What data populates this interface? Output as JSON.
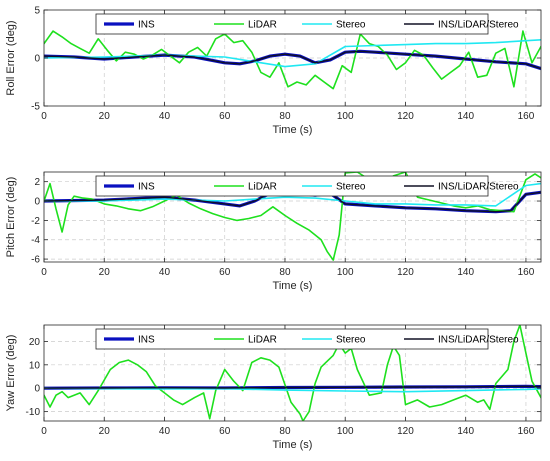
{
  "chart_data": [
    {
      "type": "line",
      "xlabel": "Time (s)",
      "ylabel": "Roll Error (deg)",
      "xlim": [
        0,
        165
      ],
      "ylim": [
        -5,
        5
      ],
      "xticks": [
        0,
        20,
        40,
        60,
        80,
        100,
        120,
        140,
        160
      ],
      "yticks": [
        -5,
        0,
        5
      ],
      "grid": true,
      "legend": "top, horizontal",
      "series": [
        {
          "name": "INS",
          "color": "#0a10c0",
          "width": 3.2,
          "x": [
            0,
            10,
            20,
            30,
            40,
            50,
            60,
            65,
            70,
            75,
            80,
            85,
            90,
            95,
            100,
            105,
            110,
            120,
            130,
            140,
            150,
            160,
            165
          ],
          "y": [
            0.2,
            0.1,
            -0.1,
            0.1,
            0.3,
            0.1,
            -0.5,
            -0.6,
            -0.3,
            0.2,
            0.4,
            0.2,
            -0.5,
            -0.2,
            0.6,
            0.7,
            0.6,
            0.4,
            0.2,
            -0.1,
            -0.4,
            -0.6,
            -1.1
          ]
        },
        {
          "name": "LiDAR",
          "color": "#1ee01e",
          "width": 1.6,
          "x": [
            0,
            3,
            6,
            9,
            12,
            15,
            18,
            21,
            24,
            27,
            30,
            33,
            36,
            39,
            42,
            45,
            48,
            51,
            54,
            57,
            60,
            63,
            66,
            69,
            72,
            75,
            78,
            81,
            84,
            87,
            90,
            93,
            96,
            99,
            102,
            105,
            108,
            111,
            114,
            117,
            120,
            123,
            126,
            129,
            132,
            135,
            138,
            141,
            144,
            147,
            150,
            153,
            156,
            159,
            162,
            165
          ],
          "y": [
            1.5,
            2.8,
            2.2,
            1.5,
            1.0,
            0.5,
            2.0,
            0.8,
            -0.3,
            0.6,
            0.4,
            -0.1,
            0.3,
            0.9,
            0.2,
            -0.5,
            0.6,
            1.1,
            0.2,
            2.0,
            2.5,
            1.6,
            1.8,
            0.6,
            -1.5,
            -2.0,
            -0.5,
            -3.0,
            -2.5,
            -2.8,
            -1.8,
            -2.5,
            -3.2,
            -0.8,
            -1.5,
            2.5,
            1.5,
            1.2,
            0.3,
            -1.2,
            -0.5,
            0.8,
            0.3,
            -1.0,
            -2.2,
            -1.5,
            -0.8,
            0.6,
            -2.0,
            -1.8,
            0.5,
            1.0,
            -3.0,
            2.8,
            -0.5,
            1.2
          ]
        },
        {
          "name": "Stereo",
          "color": "#20e8f2",
          "width": 1.6,
          "x": [
            0,
            20,
            40,
            60,
            70,
            80,
            90,
            100,
            110,
            120,
            130,
            140,
            150,
            160,
            165
          ],
          "y": [
            0.0,
            0.1,
            0.3,
            0.1,
            -0.4,
            -0.9,
            -0.6,
            1.2,
            1.3,
            1.4,
            1.5,
            1.5,
            1.6,
            1.8,
            1.9
          ]
        },
        {
          "name": "INS/LiDAR/Stereo",
          "color": "#101025",
          "width": 1.4,
          "x": [
            0,
            10,
            20,
            30,
            40,
            50,
            60,
            65,
            70,
            75,
            80,
            85,
            90,
            95,
            100,
            105,
            110,
            120,
            130,
            140,
            150,
            160,
            165
          ],
          "y": [
            0.2,
            0.1,
            -0.1,
            0.1,
            0.3,
            0.1,
            -0.5,
            -0.6,
            -0.3,
            0.2,
            0.4,
            0.2,
            -0.5,
            -0.2,
            0.6,
            0.7,
            0.6,
            0.4,
            0.2,
            -0.1,
            -0.4,
            -0.6,
            -1.1
          ]
        }
      ]
    },
    {
      "type": "line",
      "xlabel": "Time (s)",
      "ylabel": "Pitch Error (deg)",
      "xlim": [
        0,
        165
      ],
      "ylim": [
        -6.3,
        3
      ],
      "xticks": [
        0,
        20,
        40,
        60,
        80,
        100,
        120,
        140,
        160
      ],
      "yticks": [
        -6,
        -4,
        -2,
        0,
        2
      ],
      "grid": true,
      "legend": "top, horizontal",
      "series": [
        {
          "name": "INS",
          "color": "#0a10c0",
          "width": 3.2,
          "x": [
            0,
            20,
            40,
            50,
            60,
            65,
            70,
            75,
            80,
            85,
            90,
            95,
            100,
            110,
            120,
            130,
            140,
            150,
            155,
            160,
            165
          ],
          "y": [
            0.0,
            0.1,
            0.4,
            0.1,
            -0.3,
            -0.5,
            0.0,
            0.8,
            0.8,
            0.8,
            0.6,
            0.8,
            -0.3,
            -0.5,
            -0.7,
            -0.8,
            -1.0,
            -1.1,
            -1.0,
            0.7,
            0.9
          ]
        },
        {
          "name": "LiDAR",
          "color": "#1ee01e",
          "width": 1.6,
          "x": [
            0,
            2,
            4,
            6,
            8,
            10,
            13,
            16,
            20,
            24,
            28,
            32,
            36,
            40,
            44,
            48,
            52,
            56,
            60,
            64,
            68,
            72,
            76,
            80,
            84,
            88,
            92,
            94,
            96,
            98,
            100,
            104,
            108,
            112,
            116,
            120,
            124,
            128,
            132,
            136,
            140,
            144,
            148,
            152,
            156,
            160,
            163,
            165
          ],
          "y": [
            0.0,
            1.8,
            -0.8,
            -3.2,
            -0.4,
            0.5,
            0.3,
            0.2,
            -0.3,
            -0.5,
            -0.8,
            -1.0,
            -0.6,
            0.0,
            0.6,
            -0.2,
            -0.8,
            -1.3,
            -1.7,
            -2.0,
            -1.8,
            -1.5,
            -0.6,
            -1.5,
            -2.3,
            -3.0,
            -4.0,
            -5.2,
            -6.1,
            -3.5,
            2.9,
            3.0,
            2.2,
            1.0,
            2.6,
            3.0,
            0.4,
            0.1,
            -0.2,
            -0.5,
            -0.7,
            -0.5,
            -0.9,
            -1.0,
            -1.1,
            2.2,
            2.8,
            2.4
          ]
        },
        {
          "name": "Stereo",
          "color": "#20e8f2",
          "width": 1.6,
          "x": [
            0,
            20,
            40,
            60,
            70,
            80,
            90,
            100,
            110,
            120,
            130,
            140,
            150,
            160,
            165
          ],
          "y": [
            0.0,
            0.0,
            0.2,
            0.0,
            0.2,
            0.4,
            0.3,
            0.0,
            -0.3,
            -0.3,
            -0.4,
            -0.4,
            -0.5,
            1.6,
            1.8
          ]
        },
        {
          "name": "INS/LiDAR/Stereo",
          "color": "#101025",
          "width": 1.4,
          "x": [
            0,
            20,
            40,
            50,
            60,
            65,
            70,
            75,
            80,
            85,
            90,
            95,
            100,
            110,
            120,
            130,
            140,
            150,
            155,
            160,
            165
          ],
          "y": [
            0.0,
            0.1,
            0.4,
            0.1,
            -0.3,
            -0.5,
            0.0,
            0.8,
            0.8,
            0.8,
            0.6,
            0.8,
            -0.3,
            -0.5,
            -0.7,
            -0.8,
            -1.0,
            -1.1,
            -1.0,
            0.7,
            0.9
          ]
        }
      ]
    },
    {
      "type": "line",
      "xlabel": "Time (s)",
      "ylabel": "Yaw Error (deg)",
      "xlim": [
        0,
        165
      ],
      "ylim": [
        -14,
        27
      ],
      "xticks": [
        0,
        20,
        40,
        60,
        80,
        100,
        120,
        140,
        160
      ],
      "yticks": [
        -10,
        0,
        10,
        20
      ],
      "grid": true,
      "legend": "top, horizontal",
      "series": [
        {
          "name": "INS",
          "color": "#0a10c0",
          "width": 3.2,
          "x": [
            0,
            20,
            40,
            60,
            80,
            100,
            120,
            140,
            160,
            165
          ],
          "y": [
            0.0,
            0.1,
            0.2,
            0.1,
            0.3,
            0.4,
            0.5,
            0.6,
            0.8,
            0.7
          ]
        },
        {
          "name": "LiDAR",
          "color": "#1ee01e",
          "width": 1.6,
          "x": [
            0,
            2,
            4,
            6,
            8,
            10,
            12,
            15,
            18,
            22,
            25,
            28,
            31,
            34,
            37,
            40,
            43,
            46,
            50,
            53,
            55,
            57,
            60,
            63,
            66,
            69,
            72,
            75,
            78,
            82,
            85,
            86,
            88,
            90,
            92,
            96,
            98,
            100,
            102,
            104,
            108,
            112,
            114,
            116,
            118,
            120,
            124,
            128,
            132,
            136,
            140,
            144,
            146,
            148,
            150,
            154,
            156,
            158,
            160,
            162,
            165
          ],
          "y": [
            -3.0,
            -8.0,
            -3.0,
            -1.5,
            -4.0,
            -3.0,
            -2.0,
            -7.0,
            -1.0,
            8.0,
            11.0,
            12.0,
            10.0,
            7.0,
            1.0,
            -2.0,
            -5.0,
            -7.0,
            -4.0,
            -2.0,
            -13.0,
            -1.0,
            8.0,
            3.0,
            -1.0,
            11.0,
            13.0,
            12.0,
            9.0,
            -6.0,
            -11.0,
            -14.0,
            -10.0,
            2.0,
            9.0,
            14.0,
            19.0,
            15.0,
            17.0,
            8.0,
            -3.0,
            -2.0,
            10.0,
            18.0,
            14.0,
            -7.0,
            -5.0,
            -8.0,
            -7.0,
            -5.0,
            -3.0,
            -6.0,
            -5.0,
            -9.0,
            2.0,
            8.0,
            20.0,
            27.0,
            15.0,
            3.0,
            -4.0
          ]
        },
        {
          "name": "Stereo",
          "color": "#20e8f2",
          "width": 1.6,
          "x": [
            0,
            20,
            40,
            60,
            80,
            100,
            120,
            140,
            160,
            165
          ],
          "y": [
            0.0,
            -0.2,
            -0.3,
            -0.2,
            -0.8,
            -1.2,
            -1.5,
            -1.0,
            -0.5,
            -0.3
          ]
        },
        {
          "name": "INS/LiDAR/Stereo",
          "color": "#101025",
          "width": 1.4,
          "x": [
            0,
            20,
            40,
            60,
            80,
            100,
            120,
            140,
            160,
            165
          ],
          "y": [
            0.0,
            0.1,
            0.2,
            0.1,
            0.3,
            0.4,
            0.5,
            0.6,
            0.8,
            0.7
          ]
        }
      ]
    }
  ]
}
